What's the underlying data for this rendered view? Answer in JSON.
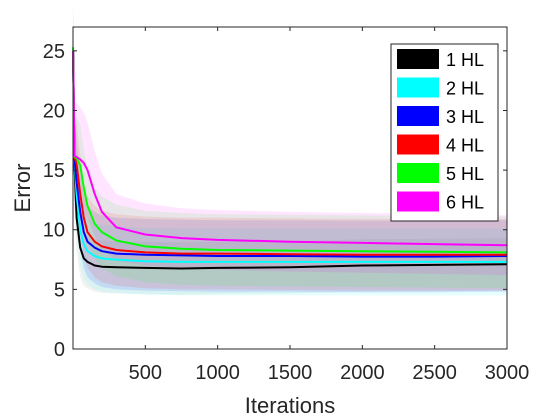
{
  "chart_data": {
    "type": "line",
    "xlabel": "Iterations",
    "ylabel": "Error",
    "xlim": [
      0,
      3000
    ],
    "ylim": [
      0,
      27
    ],
    "xticks": [
      500,
      1000,
      1500,
      2000,
      2500,
      3000
    ],
    "yticks": [
      0,
      5,
      10,
      15,
      20,
      25
    ],
    "grid": false,
    "legend_position": "top-right",
    "shaded_band": "spread around each series mean",
    "series": [
      {
        "name": "1 HL",
        "color": "#000000",
        "band_color": "#7f7f7f",
        "x": [
          1,
          10,
          25,
          50,
          75,
          100,
          150,
          200,
          300,
          500,
          750,
          1000,
          1500,
          2000,
          2500,
          3000
        ],
        "y": [
          25,
          15.6,
          11,
          8.5,
          7.6,
          7.3,
          7.0,
          6.9,
          6.85,
          6.8,
          6.75,
          6.8,
          6.85,
          7.0,
          7.05,
          7.1
        ],
        "band": [
          3.0,
          3.0,
          2.8,
          2.5,
          2.3,
          2.2,
          2.2,
          2.2,
          2.2,
          2.2,
          2.2,
          2.2,
          2.2,
          2.2,
          2.2,
          2.2
        ]
      },
      {
        "name": "2 HL",
        "color": "#00ffff",
        "band_color": "#00ffff",
        "x": [
          1,
          10,
          25,
          50,
          75,
          100,
          150,
          200,
          300,
          500,
          750,
          1000,
          1500,
          2000,
          2500,
          3000
        ],
        "y": [
          25,
          16,
          13,
          10,
          8.8,
          8.2,
          7.8,
          7.6,
          7.5,
          7.35,
          7.3,
          7.3,
          7.3,
          7.3,
          7.3,
          7.3
        ],
        "band": [
          3.2,
          3.2,
          3.2,
          3.0,
          2.9,
          2.8,
          2.8,
          2.8,
          2.8,
          2.8,
          2.8,
          2.8,
          2.8,
          2.8,
          2.8,
          2.8
        ]
      },
      {
        "name": "3 HL",
        "color": "#0000ff",
        "band_color": "#0000ff",
        "x": [
          1,
          10,
          25,
          50,
          75,
          100,
          150,
          200,
          300,
          500,
          750,
          1000,
          1500,
          2000,
          2500,
          3000
        ],
        "y": [
          25,
          16,
          14,
          11.5,
          9.8,
          9.0,
          8.5,
          8.2,
          8.0,
          7.9,
          7.85,
          7.8,
          7.8,
          7.75,
          7.75,
          7.8
        ],
        "band": [
          3.5,
          3.5,
          3.5,
          3.2,
          3.0,
          3.0,
          3.0,
          3.0,
          3.0,
          3.0,
          3.0,
          3.0,
          3.0,
          3.0,
          3.0,
          3.0
        ]
      },
      {
        "name": "4 HL",
        "color": "#ff0000",
        "band_color": "#ff0000",
        "x": [
          1,
          10,
          25,
          50,
          75,
          100,
          150,
          200,
          300,
          500,
          750,
          1000,
          1500,
          2000,
          2500,
          3000
        ],
        "y": [
          25,
          16.1,
          15.5,
          13,
          11,
          9.8,
          9.0,
          8.6,
          8.3,
          8.1,
          8.0,
          8.0,
          7.95,
          7.9,
          7.9,
          7.9
        ],
        "band": [
          3.5,
          3.5,
          3.5,
          3.3,
          3.1,
          3.0,
          3.0,
          3.0,
          3.0,
          3.0,
          3.0,
          3.0,
          3.0,
          3.0,
          3.0,
          3.0
        ]
      },
      {
        "name": "5 HL",
        "color": "#00ff00",
        "band_color": "#00ff00",
        "x": [
          1,
          10,
          25,
          50,
          75,
          100,
          150,
          200,
          300,
          500,
          750,
          1000,
          1500,
          2000,
          2500,
          3000
        ],
        "y": [
          25.3,
          16.1,
          16.0,
          15.4,
          13.5,
          12.0,
          10.5,
          9.8,
          9.1,
          8.6,
          8.4,
          8.3,
          8.25,
          8.2,
          8.15,
          8.1
        ],
        "band": [
          3.5,
          3.5,
          3.5,
          3.4,
          3.2,
          3.1,
          3.0,
          3.0,
          3.0,
          3.0,
          3.0,
          3.0,
          3.0,
          3.0,
          3.0,
          3.0
        ]
      },
      {
        "name": "6 HL",
        "color": "#ff00ff",
        "band_color": "#ff00ff",
        "x": [
          1,
          10,
          25,
          50,
          75,
          100,
          150,
          200,
          300,
          500,
          750,
          1000,
          1500,
          2000,
          2500,
          3000
        ],
        "y": [
          25,
          16.2,
          16.1,
          15.9,
          15.6,
          15.0,
          13.0,
          11.5,
          10.2,
          9.6,
          9.3,
          9.15,
          9.0,
          8.9,
          8.8,
          8.7
        ],
        "band": [
          4.5,
          4.5,
          4.5,
          4.4,
          4.2,
          4.0,
          3.6,
          3.2,
          2.8,
          2.6,
          2.5,
          2.5,
          2.5,
          2.5,
          2.5,
          2.5
        ]
      }
    ]
  }
}
